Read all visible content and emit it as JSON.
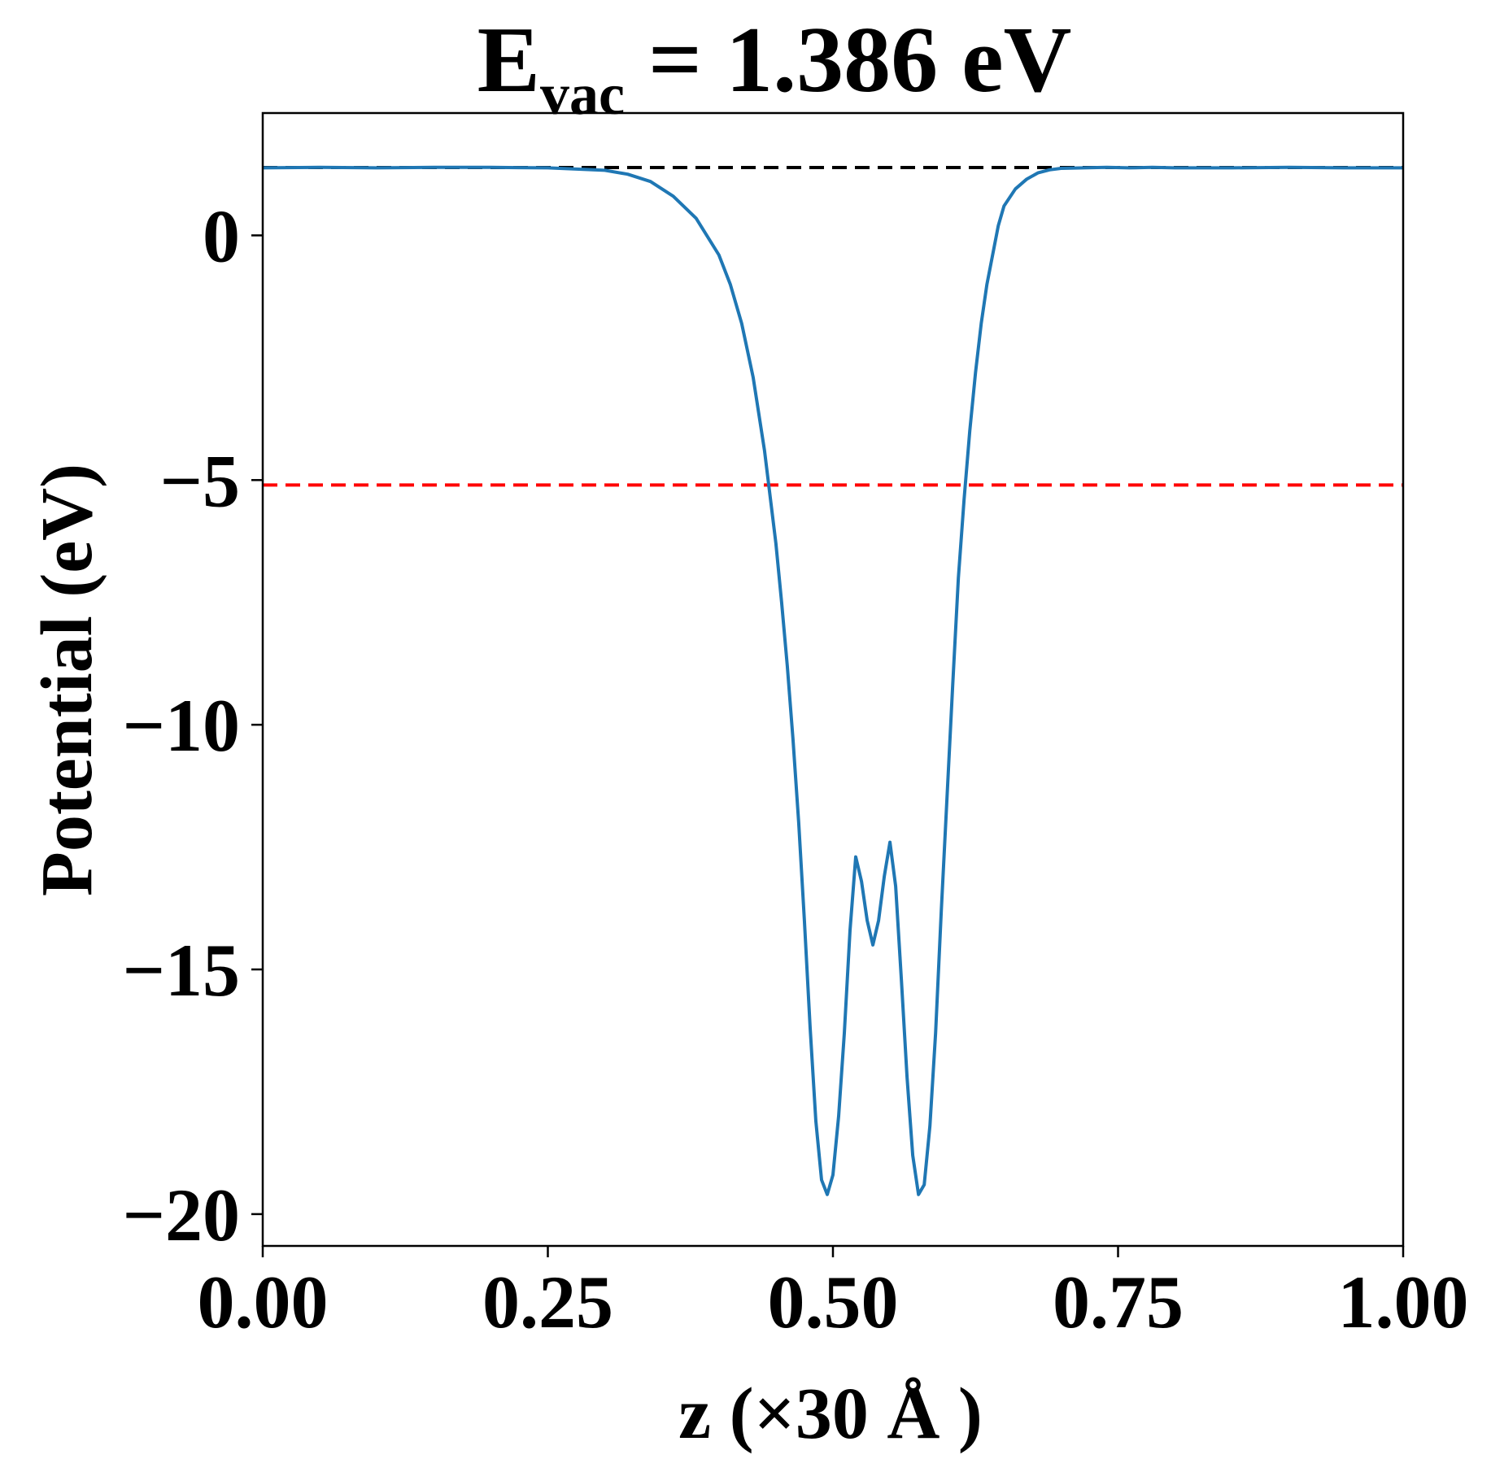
{
  "chart_data": {
    "type": "line",
    "title": {
      "main": "E",
      "subscript": "vac",
      "rest": " = 1.386 eV"
    },
    "xlabel": "z (×30 Å )",
    "ylabel": "Potential (eV)",
    "xlim": [
      0.0,
      1.0
    ],
    "ylim": [
      -20.65,
      2.5
    ],
    "xticks": [
      0.0,
      0.25,
      0.5,
      0.75,
      1.0
    ],
    "xtick_labels": [
      "0.00",
      "0.25",
      "0.50",
      "0.75",
      "1.00"
    ],
    "yticks": [
      0,
      -5,
      -10,
      -15,
      -20
    ],
    "ytick_labels": [
      "0",
      "−5",
      "−10",
      "−15",
      "−20"
    ],
    "grid": false,
    "reference_lines": [
      {
        "y": 1.386,
        "color": "#000000",
        "style": "dashed"
      },
      {
        "y": -5.1,
        "color": "#ff0000",
        "style": "dashed"
      }
    ],
    "series": [
      {
        "color": "#1f77b4",
        "x": [
          0.0,
          0.05,
          0.1,
          0.15,
          0.2,
          0.25,
          0.3,
          0.32,
          0.34,
          0.36,
          0.38,
          0.4,
          0.41,
          0.42,
          0.43,
          0.44,
          0.45,
          0.455,
          0.46,
          0.465,
          0.47,
          0.475,
          0.48,
          0.485,
          0.49,
          0.495,
          0.5,
          0.505,
          0.51,
          0.515,
          0.52,
          0.525,
          0.53,
          0.535,
          0.54,
          0.545,
          0.55,
          0.555,
          0.56,
          0.565,
          0.57,
          0.575,
          0.58,
          0.585,
          0.59,
          0.595,
          0.6,
          0.605,
          0.61,
          0.615,
          0.62,
          0.625,
          0.63,
          0.635,
          0.64,
          0.645,
          0.65,
          0.66,
          0.67,
          0.68,
          0.69,
          0.7,
          0.72,
          0.74,
          0.76,
          0.78,
          0.8,
          0.85,
          0.9,
          0.95,
          1.0
        ],
        "y": [
          1.38,
          1.39,
          1.38,
          1.39,
          1.39,
          1.38,
          1.33,
          1.25,
          1.1,
          0.8,
          0.35,
          -0.4,
          -1.0,
          -1.8,
          -2.9,
          -4.4,
          -6.3,
          -7.5,
          -8.8,
          -10.3,
          -12.0,
          -14.0,
          -16.2,
          -18.1,
          -19.3,
          -19.6,
          -19.2,
          -18.0,
          -16.3,
          -14.2,
          -12.7,
          -13.2,
          -14.0,
          -14.5,
          -14.0,
          -13.1,
          -12.4,
          -13.3,
          -15.2,
          -17.2,
          -18.8,
          -19.6,
          -19.4,
          -18.2,
          -16.3,
          -13.8,
          -11.5,
          -9.2,
          -7.0,
          -5.4,
          -4.0,
          -2.8,
          -1.8,
          -1.0,
          -0.4,
          0.2,
          0.6,
          0.95,
          1.15,
          1.28,
          1.34,
          1.37,
          1.38,
          1.39,
          1.38,
          1.39,
          1.38,
          1.38,
          1.39,
          1.38,
          1.38
        ]
      }
    ]
  }
}
